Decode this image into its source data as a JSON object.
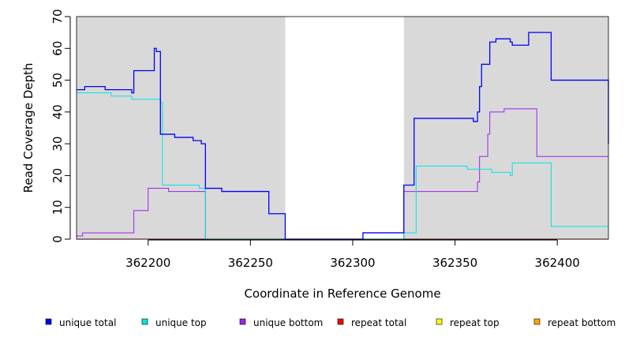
{
  "chart_data": {
    "type": "line",
    "title": "",
    "xlabel": "Coordinate in Reference Genome",
    "ylabel": "Read Coverage Depth",
    "xlim": [
      362165,
      362425
    ],
    "ylim": [
      0,
      70
    ],
    "x_ticks": [
      362200,
      362250,
      362300,
      362350,
      362400
    ],
    "y_ticks": [
      0,
      10,
      20,
      30,
      40,
      50,
      60,
      70
    ],
    "step": true,
    "shaded_regions": [
      {
        "x0": 362165,
        "x1": 362267,
        "color": "#d9d9d9"
      },
      {
        "x0": 362325,
        "x1": 362425,
        "color": "#d9d9d9"
      }
    ],
    "legend_position": "bottom",
    "series": [
      {
        "name": "unique total",
        "color": "#0000ff",
        "x": [
          362165,
          362169,
          362179,
          362192,
          362193,
          362203,
          362204,
          362206,
          362207,
          362213,
          362222,
          362226,
          362228,
          362236,
          362259,
          362267,
          362305,
          362325,
          362330,
          362359,
          362360,
          362361,
          362362,
          362363,
          362364,
          362367,
          362370,
          362377,
          362378,
          362386,
          362390,
          362397,
          362425
        ],
        "y": [
          47,
          48,
          47,
          46,
          53,
          60,
          59,
          33,
          33,
          32,
          31,
          30,
          16,
          15,
          8,
          0,
          2,
          17,
          38,
          37,
          37,
          40,
          48,
          55,
          55,
          62,
          63,
          62,
          61,
          65,
          65,
          50,
          30
        ]
      },
      {
        "name": "unique top",
        "color": "#00e5e5",
        "x": [
          362165,
          362174,
          362182,
          362192,
          362206,
          362207,
          362213,
          362222,
          362225,
          362228,
          362325,
          362331,
          362351,
          362356,
          362359,
          362362,
          362368,
          362370,
          362377,
          362378,
          362381,
          362386,
          362397,
          362425
        ],
        "y": [
          46,
          46,
          45,
          44,
          43,
          17,
          17,
          17,
          16,
          0,
          2,
          23,
          23,
          22,
          22,
          22,
          21,
          21,
          20,
          24,
          24,
          24,
          4,
          4
        ]
      },
      {
        "name": "unique bottom",
        "color": "#a020f0",
        "x": [
          362165,
          362168,
          362193,
          362200,
          362206,
          362210,
          362213,
          362228,
          362325,
          362359,
          362361,
          362362,
          362366,
          362367,
          362374,
          362390,
          362425
        ],
        "y": [
          1,
          2,
          9,
          16,
          16,
          15,
          15,
          0,
          15,
          15,
          18,
          26,
          33,
          40,
          41,
          26,
          26
        ]
      },
      {
        "name": "repeat total",
        "color": "#ff0000",
        "x": [
          362165,
          362425
        ],
        "y": [
          0,
          0
        ]
      },
      {
        "name": "repeat top",
        "color": "#ffff00",
        "x": [
          362165,
          362425
        ],
        "y": [
          0,
          0
        ]
      },
      {
        "name": "repeat bottom",
        "color": "#ffa500",
        "x": [
          362165,
          362425
        ],
        "y": [
          0,
          0
        ]
      }
    ]
  }
}
